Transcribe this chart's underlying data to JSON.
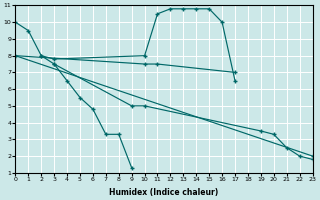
{
  "bg_color": "#cce8e8",
  "grid_color": "#ffffff",
  "line_color": "#006868",
  "xlabel": "Humidex (Indice chaleur)",
  "xlim": [
    0,
    23
  ],
  "ylim": [
    1,
    11
  ],
  "line1_x": [
    0,
    1,
    2,
    3,
    4,
    5,
    6,
    7,
    8,
    9
  ],
  "line1_y": [
    10,
    9.5,
    8,
    7.5,
    6.5,
    5.5,
    4.8,
    3.3,
    3.3,
    1.3
  ],
  "line2_x": [
    2,
    3,
    10,
    11,
    12,
    13,
    14,
    15,
    16,
    17
  ],
  "line2_y": [
    8,
    7.8,
    8.0,
    10.5,
    10.8,
    10.8,
    10.8,
    10.8,
    10.0,
    6.5
  ],
  "line3_x": [
    0,
    10,
    11,
    17
  ],
  "line3_y": [
    8.0,
    7.5,
    7.5,
    7.0
  ],
  "line4_x": [
    0,
    23
  ],
  "line4_y": [
    8.0,
    2.0
  ],
  "line5_x": [
    3,
    9,
    10,
    19,
    20,
    21,
    22,
    23
  ],
  "line5_y": [
    7.5,
    5.0,
    5.0,
    3.5,
    3.3,
    2.5,
    2.0,
    1.8
  ]
}
